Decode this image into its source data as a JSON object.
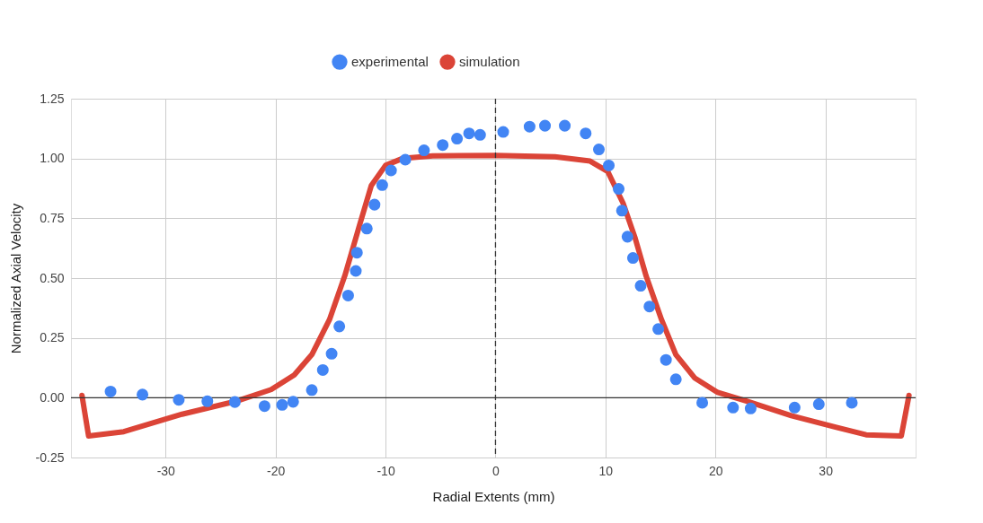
{
  "chart_data": {
    "type": "scatter",
    "xlabel": "Radial Extents (mm)",
    "ylabel": "Normalized Axial Velocity",
    "xlim": [
      -38.6,
      38.2
    ],
    "xticks": [
      -30,
      -20,
      -10,
      0,
      10,
      20,
      30
    ],
    "ylim": [
      -0.25,
      1.25
    ],
    "yticks": [
      {
        "value": -0.25,
        "label": "-0.25"
      },
      {
        "value": 0,
        "label": "0.00"
      },
      {
        "value": 0.25,
        "label": "0.25"
      },
      {
        "value": 0.5,
        "label": "0.50"
      },
      {
        "value": 0.75,
        "label": "0.75"
      },
      {
        "value": 1,
        "label": "1.00"
      },
      {
        "value": 1.25,
        "label": "1.25"
      }
    ],
    "grid": true,
    "legend": "top",
    "ref_lines": [
      {
        "axis": "x",
        "value": 0,
        "color": "#333333",
        "line_style": "dashed"
      },
      {
        "axis": "y",
        "value": 0,
        "color": "#333333",
        "line_style": "solid"
      }
    ],
    "series": [
      {
        "name": "experimental",
        "marker": "circle",
        "color": "#4285f4",
        "x": [
          -35.0,
          -32.1,
          -28.8,
          -26.2,
          -23.7,
          -21.0,
          -19.4,
          -18.4,
          -16.7,
          -15.7,
          -14.9,
          -14.2,
          -13.4,
          -12.7,
          -12.6,
          -11.7,
          -11.0,
          -10.3,
          -9.5,
          -8.2,
          -6.5,
          -4.8,
          -3.5,
          -2.4,
          -1.4,
          0.7,
          3.1,
          4.5,
          6.3,
          8.2,
          9.4,
          10.3,
          11.2,
          11.5,
          12.0,
          12.5,
          13.2,
          14.0,
          14.8,
          15.5,
          16.4,
          18.8,
          21.6,
          23.2,
          27.2,
          29.4,
          32.4
        ],
        "values": [
          0.026,
          0.013,
          -0.009,
          -0.015,
          -0.018,
          -0.035,
          -0.03,
          -0.017,
          0.032,
          0.116,
          0.184,
          0.298,
          0.427,
          0.53,
          0.606,
          0.707,
          0.807,
          0.889,
          0.95,
          0.995,
          1.034,
          1.056,
          1.083,
          1.105,
          1.099,
          1.111,
          1.133,
          1.137,
          1.137,
          1.105,
          1.038,
          0.971,
          0.873,
          0.782,
          0.673,
          0.584,
          0.468,
          0.381,
          0.287,
          0.158,
          0.077,
          -0.021,
          -0.041,
          -0.045,
          -0.041,
          -0.027,
          -0.021
        ]
      },
      {
        "name": "simulation",
        "type": "line",
        "marker": "none",
        "color": "#db4437",
        "x": [
          -37.6,
          -37.0,
          -33.8,
          -28.5,
          -23.6,
          -20.4,
          -18.3,
          -16.7,
          -15.1,
          -13.7,
          -12.4,
          -11.3,
          -10.0,
          -8.4,
          -5.7,
          0,
          5.4,
          8.6,
          10.2,
          11.6,
          12.7,
          13.7,
          15.1,
          16.4,
          18.1,
          20.2,
          22.9,
          26.9,
          31.0,
          33.7,
          36.9,
          37.6
        ],
        "values": [
          0.01,
          -0.16,
          -0.142,
          -0.069,
          -0.015,
          0.034,
          0.095,
          0.18,
          0.326,
          0.51,
          0.715,
          0.886,
          0.971,
          1.001,
          1.011,
          1.013,
          1.007,
          0.989,
          0.946,
          0.813,
          0.667,
          0.508,
          0.326,
          0.18,
          0.083,
          0.022,
          -0.015,
          -0.075,
          -0.124,
          -0.155,
          -0.16,
          0.01
        ]
      }
    ]
  }
}
